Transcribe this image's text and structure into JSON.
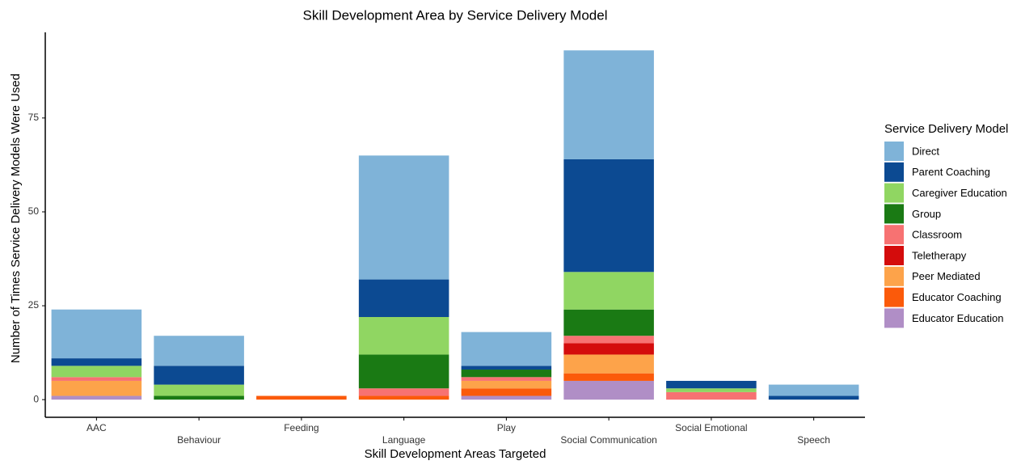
{
  "chart_data": {
    "type": "stacked_bar",
    "title": "Skill Development Area by Service Delivery Model",
    "x_label": "Skill Development Areas Targeted",
    "y_label": "Number of Times Service Delivery Models Were Used",
    "legend_title": "Service Delivery Model",
    "legend_position": "right",
    "categories": [
      "AAC",
      "Behaviour",
      "Feeding",
      "Language",
      "Play",
      "Social Communication",
      "Social Emotional",
      "Speech"
    ],
    "series": [
      {
        "name": "Direct",
        "color": "#7fb3d8",
        "values": [
          13,
          8,
          0,
          33,
          9,
          29,
          0,
          3
        ]
      },
      {
        "name": "Parent Coaching",
        "color": "#0c4a92",
        "values": [
          2,
          5,
          0,
          10,
          1,
          30,
          2,
          1
        ]
      },
      {
        "name": "Caregiver Education",
        "color": "#90d662",
        "values": [
          3,
          3,
          0,
          10,
          0,
          10,
          1,
          0
        ]
      },
      {
        "name": "Group",
        "color": "#1a7a14",
        "values": [
          0,
          1,
          0,
          9,
          2,
          7,
          0,
          0
        ]
      },
      {
        "name": "Classroom",
        "color": "#f77272",
        "values": [
          1,
          0,
          0,
          2,
          1,
          2,
          2,
          0
        ]
      },
      {
        "name": "Teletherapy",
        "color": "#d40c0c",
        "values": [
          0,
          0,
          0,
          0,
          0,
          3,
          0,
          0
        ]
      },
      {
        "name": "Peer Mediated",
        "color": "#fda34a",
        "values": [
          4,
          0,
          0,
          0,
          2,
          5,
          0,
          0
        ]
      },
      {
        "name": "Educator Coaching",
        "color": "#fb5a0a",
        "values": [
          0,
          0,
          1,
          1,
          2,
          2,
          0,
          0
        ]
      },
      {
        "name": "Educator Education",
        "color": "#b08ec6",
        "values": [
          1,
          0,
          0,
          0,
          1,
          5,
          0,
          0
        ]
      }
    ],
    "ylim": [
      -4.7,
      97.8
    ],
    "yticks": [
      0,
      25,
      50,
      75
    ],
    "grid": false
  }
}
